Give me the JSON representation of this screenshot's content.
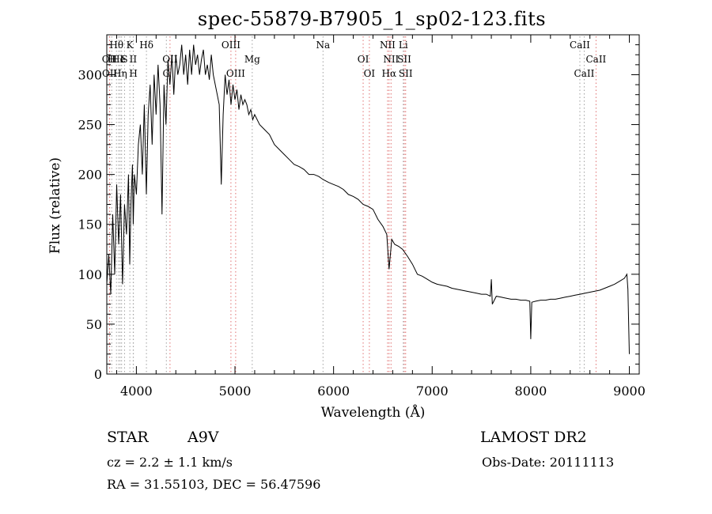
{
  "chart_data": {
    "type": "line",
    "title": "spec-55879-B7905_1_sp02-123.fits",
    "xlabel": "Wavelength (Å)",
    "ylabel": "Flux (relative)",
    "xlim": [
      3700,
      9100
    ],
    "ylim": [
      0,
      340
    ],
    "xticks": [
      4000,
      5000,
      6000,
      7000,
      8000,
      9000
    ],
    "yticks": [
      0,
      50,
      100,
      150,
      200,
      250,
      300
    ],
    "grid": false,
    "series": [
      {
        "name": "flux",
        "x": [
          3700,
          3720,
          3740,
          3760,
          3780,
          3800,
          3820,
          3840,
          3860,
          3880,
          3900,
          3920,
          3933,
          3945,
          3960,
          3968,
          3980,
          4000,
          4020,
          4040,
          4060,
          4080,
          4101,
          4120,
          4140,
          4160,
          4180,
          4200,
          4220,
          4240,
          4260,
          4280,
          4300,
          4320,
          4340,
          4360,
          4380,
          4400,
          4420,
          4440,
          4460,
          4480,
          4500,
          4520,
          4540,
          4560,
          4580,
          4600,
          4620,
          4640,
          4660,
          4680,
          4700,
          4720,
          4740,
          4760,
          4780,
          4800,
          4820,
          4840,
          4861,
          4880,
          4900,
          4920,
          4940,
          4960,
          4980,
          5000,
          5020,
          5040,
          5060,
          5080,
          5100,
          5120,
          5140,
          5160,
          5180,
          5200,
          5250,
          5300,
          5350,
          5400,
          5450,
          5500,
          5550,
          5600,
          5650,
          5700,
          5750,
          5800,
          5850,
          5893,
          5950,
          6000,
          6050,
          6100,
          6150,
          6200,
          6250,
          6300,
          6350,
          6400,
          6450,
          6500,
          6540,
          6563,
          6590,
          6620,
          6660,
          6700,
          6750,
          6800,
          6850,
          6900,
          6950,
          7000,
          7050,
          7100,
          7150,
          7200,
          7250,
          7300,
          7350,
          7400,
          7450,
          7500,
          7550,
          7590,
          7600,
          7610,
          7650,
          7700,
          7750,
          7800,
          7850,
          7900,
          7950,
          7990,
          8000,
          8010,
          8050,
          8100,
          8150,
          8200,
          8250,
          8300,
          8350,
          8400,
          8450,
          8500,
          8550,
          8600,
          8650,
          8700,
          8750,
          8800,
          8850,
          8900,
          8950,
          8975,
          8985,
          9000
        ],
        "values": [
          90,
          120,
          80,
          160,
          100,
          190,
          130,
          180,
          90,
          170,
          140,
          200,
          110,
          170,
          210,
          150,
          200,
          180,
          230,
          250,
          200,
          270,
          180,
          260,
          290,
          230,
          300,
          260,
          310,
          270,
          160,
          290,
          250,
          315,
          290,
          320,
          280,
          320,
          300,
          310,
          330,
          300,
          320,
          290,
          325,
          300,
          330,
          310,
          320,
          300,
          315,
          325,
          300,
          310,
          295,
          320,
          300,
          290,
          280,
          270,
          190,
          260,
          300,
          280,
          295,
          270,
          290,
          275,
          285,
          265,
          280,
          270,
          275,
          270,
          260,
          265,
          255,
          260,
          250,
          245,
          240,
          230,
          225,
          220,
          215,
          210,
          208,
          205,
          200,
          200,
          198,
          195,
          192,
          190,
          188,
          185,
          180,
          178,
          175,
          170,
          168,
          165,
          155,
          148,
          140,
          105,
          135,
          130,
          128,
          125,
          118,
          110,
          100,
          98,
          95,
          92,
          90,
          89,
          88,
          86,
          85,
          84,
          83,
          82,
          81,
          80,
          80,
          78,
          95,
          70,
          78,
          77,
          76,
          75,
          75,
          74,
          74,
          73,
          35,
          72,
          73,
          74,
          74,
          75,
          75,
          76,
          77,
          78,
          79,
          80,
          81,
          82,
          83,
          84,
          86,
          88,
          90,
          93,
          96,
          100,
          85,
          20
        ]
      }
    ],
    "line_marks": [
      {
        "label": "Hθ",
        "x": 3798,
        "row": 1,
        "color": "#a0a0a0"
      },
      {
        "label": "K",
        "x": 3934,
        "row": 1,
        "color": "#a0a0a0"
      },
      {
        "label": "Hδ",
        "x": 4102,
        "row": 1,
        "color": "#a0a0a0"
      },
      {
        "label": "OII",
        "x": 3727,
        "row": 2,
        "color": "#e07070"
      },
      {
        "label": "H",
        "x": 3750,
        "row": 2,
        "color": "#a0a0a0"
      },
      {
        "label": "He",
        "x": 3820,
        "row": 2,
        "color": "#a0a0a0"
      },
      {
        "label": "I",
        "x": 3850,
        "row": 2,
        "color": "#a0a0a0"
      },
      {
        "label": "S",
        "x": 3880,
        "row": 2,
        "color": "#a0a0a0"
      },
      {
        "label": "II",
        "x": 3968,
        "row": 2,
        "color": "#a0a0a0"
      },
      {
        "label": "OII",
        "x": 3729,
        "row": 3,
        "color": "#e07070"
      },
      {
        "label": "Hη",
        "x": 3835,
        "row": 3,
        "color": "#a0a0a0"
      },
      {
        "label": "H",
        "x": 3970,
        "row": 3,
        "color": "#a0a0a0"
      },
      {
        "label": "G",
        "x": 4304,
        "row": 3,
        "color": "#a0a0a0"
      },
      {
        "label": "OII",
        "x": 4341,
        "row": 2,
        "color": "#e07070"
      },
      {
        "label": "OIII",
        "x": 4959,
        "row": 1,
        "color": "#e07070"
      },
      {
        "label": "Mg",
        "x": 5175,
        "row": 2,
        "color": "#a0a0a0"
      },
      {
        "label": "OIII",
        "x": 5007,
        "row": 3,
        "color": "#e07070"
      },
      {
        "label": "Na",
        "x": 5893,
        "row": 1,
        "color": "#a0a0a0"
      },
      {
        "label": "OI",
        "x": 6300,
        "row": 2,
        "color": "#e07070"
      },
      {
        "label": "OI",
        "x": 6363,
        "row": 3,
        "color": "#e07070"
      },
      {
        "label": "NII",
        "x": 6548,
        "row": 1,
        "color": "#e07070"
      },
      {
        "label": "Li",
        "x": 6707,
        "row": 1,
        "color": "#a0a0a0"
      },
      {
        "label": "NII",
        "x": 6583,
        "row": 2,
        "color": "#e07070"
      },
      {
        "label": "SII",
        "x": 6717,
        "row": 2,
        "color": "#e07070"
      },
      {
        "label": "Hα",
        "x": 6563,
        "row": 3,
        "color": "#e07070"
      },
      {
        "label": "SII",
        "x": 6731,
        "row": 3,
        "color": "#e07070"
      },
      {
        "label": "CaII",
        "x": 8498,
        "row": 1,
        "color": "#a0a0a0"
      },
      {
        "label": "CaII",
        "x": 8662,
        "row": 2,
        "color": "#e07070"
      },
      {
        "label": "CaII",
        "x": 8542,
        "row": 3,
        "color": "#a0a0a0"
      }
    ]
  },
  "info": {
    "object_class": "STAR",
    "subclass": "A9V",
    "survey": "LAMOST DR2",
    "cz": "cz = 2.2 ± 1.1 km/s",
    "obs_date": "Obs-Date: 20111113",
    "coords": "RA =  31.55103, DEC =  56.47596"
  }
}
